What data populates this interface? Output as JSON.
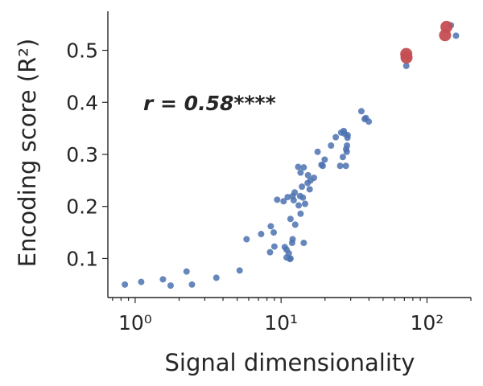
{
  "chart_data": {
    "type": "scatter",
    "xlabel": "Signal dimensionality",
    "ylabel": "Encoding score (R²)",
    "x_scale": "log",
    "xlim": [
      0.65,
      200
    ],
    "ylim": [
      0.025,
      0.575
    ],
    "x_ticks": [
      {
        "value": 1,
        "label": "10⁰"
      },
      {
        "value": 10,
        "label": "10¹"
      },
      {
        "value": 100,
        "label": "10²"
      }
    ],
    "y_ticks": [
      0.1,
      0.2,
      0.3,
      0.4,
      0.5
    ],
    "grid": false,
    "annotation": "r = 0.58****",
    "colors": {
      "points": "#4c72b0",
      "highlight": "#c44e52",
      "axes": "#262626"
    },
    "series": [
      {
        "marker": "small",
        "color": "#4c72b0",
        "points": [
          [
            0.85,
            0.05
          ],
          [
            1.1,
            0.055
          ],
          [
            1.55,
            0.06
          ],
          [
            1.75,
            0.048
          ],
          [
            2.25,
            0.075
          ],
          [
            2.45,
            0.05
          ],
          [
            3.6,
            0.063
          ],
          [
            5.2,
            0.077
          ],
          [
            5.8,
            0.137
          ],
          [
            7.3,
            0.147
          ],
          [
            8.4,
            0.112
          ],
          [
            8.5,
            0.162
          ],
          [
            8.9,
            0.15
          ],
          [
            9.0,
            0.123
          ],
          [
            9.4,
            0.213
          ],
          [
            10.4,
            0.21
          ],
          [
            10.6,
            0.122
          ],
          [
            10.9,
            0.102
          ],
          [
            10.9,
            0.117
          ],
          [
            11.1,
            0.218
          ],
          [
            11.3,
            0.11
          ],
          [
            11.5,
            0.099
          ],
          [
            11.6,
            0.1
          ],
          [
            11.6,
            0.176
          ],
          [
            11.9,
            0.13
          ],
          [
            12.0,
            0.137
          ],
          [
            12.0,
            0.22
          ],
          [
            12.2,
            0.212
          ],
          [
            12.4,
            0.227
          ],
          [
            12.5,
            0.165
          ],
          [
            13.1,
            0.276
          ],
          [
            13.2,
            0.202
          ],
          [
            13.5,
            0.22
          ],
          [
            13.6,
            0.186
          ],
          [
            13.6,
            0.265
          ],
          [
            13.9,
            0.238
          ],
          [
            14.1,
            0.217
          ],
          [
            14.3,
            0.13
          ],
          [
            14.3,
            0.275
          ],
          [
            14.6,
            0.205
          ],
          [
            15.2,
            0.245
          ],
          [
            15.3,
            0.26
          ],
          [
            15.7,
            0.233
          ],
          [
            15.9,
            0.25
          ],
          [
            16.8,
            0.255
          ],
          [
            17.8,
            0.305
          ],
          [
            18.9,
            0.28
          ],
          [
            19.3,
            0.278
          ],
          [
            19.9,
            0.29
          ],
          [
            22.0,
            0.317
          ],
          [
            23.7,
            0.333
          ],
          [
            25.4,
            0.278
          ],
          [
            25.8,
            0.342
          ],
          [
            26.5,
            0.295
          ],
          [
            26.9,
            0.345
          ],
          [
            27.2,
            0.34
          ],
          [
            27.8,
            0.278
          ],
          [
            27.9,
            0.31
          ],
          [
            28.2,
            0.305
          ],
          [
            28.3,
            0.317
          ],
          [
            28.5,
            0.332
          ],
          [
            28.6,
            0.337
          ],
          [
            35.5,
            0.383
          ],
          [
            37.4,
            0.368
          ],
          [
            38.1,
            0.37
          ],
          [
            39.9,
            0.363
          ],
          [
            72.1,
            0.47
          ],
          [
            146.0,
            0.548
          ],
          [
            158.0,
            0.528
          ]
        ]
      },
      {
        "marker": "large",
        "color": "#c44e52",
        "points": [
          [
            72.1,
            0.493
          ],
          [
            72.4,
            0.486
          ],
          [
            133.0,
            0.529
          ],
          [
            136.0,
            0.545
          ]
        ]
      }
    ]
  }
}
